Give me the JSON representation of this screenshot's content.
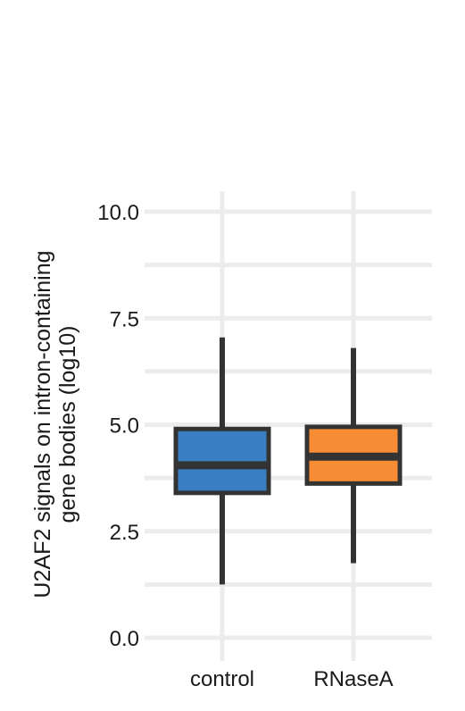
{
  "chart_data": {
    "type": "box",
    "ylabel_lines": [
      "U2AF2 signals on intron-containing",
      "gene bodies (log10)"
    ],
    "ylim": [
      -0.2,
      10.5
    ],
    "y_ticks": [
      0.0,
      2.5,
      5.0,
      7.5,
      10.0
    ],
    "y_tick_labels": [
      "0.0",
      "2.5",
      "5.0",
      "7.5",
      "10.0"
    ],
    "categories": [
      "control",
      "RNaseA"
    ],
    "boxes": [
      {
        "category": "control",
        "min": 1.25,
        "q1": 3.4,
        "median": 4.05,
        "q3": 4.9,
        "max": 7.05,
        "color": "#3a7fc4"
      },
      {
        "category": "RNaseA",
        "min": 1.75,
        "q1": 3.62,
        "median": 4.25,
        "q3": 4.95,
        "max": 6.8,
        "color": "#f68d34"
      }
    ],
    "grid": true,
    "colors": {
      "grid": "#ececec",
      "outline": "#333333"
    }
  }
}
